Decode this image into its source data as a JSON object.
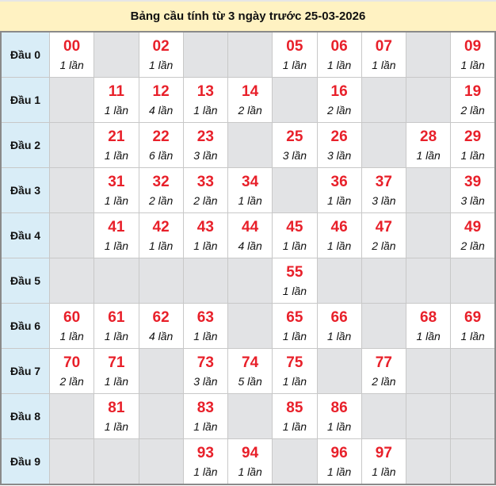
{
  "title": "Bảng cầu tính từ 3 ngày trước 25-03-2026",
  "colors": {
    "number": "#e8202a",
    "label_bg": "#d9edf7",
    "empty_bg": "#e2e3e5",
    "title_bg": "#fff2c2"
  },
  "rows": [
    {
      "label": "Đầu 0",
      "cells": [
        {
          "n": "00",
          "c": "1 lần"
        },
        null,
        {
          "n": "02",
          "c": "1 lần"
        },
        null,
        null,
        {
          "n": "05",
          "c": "1 lần"
        },
        {
          "n": "06",
          "c": "1 lần"
        },
        {
          "n": "07",
          "c": "1 lần"
        },
        null,
        {
          "n": "09",
          "c": "1 lần"
        }
      ]
    },
    {
      "label": "Đầu 1",
      "cells": [
        null,
        {
          "n": "11",
          "c": "1 lần"
        },
        {
          "n": "12",
          "c": "4 lần"
        },
        {
          "n": "13",
          "c": "1 lần"
        },
        {
          "n": "14",
          "c": "2 lần"
        },
        null,
        {
          "n": "16",
          "c": "2 lần"
        },
        null,
        null,
        {
          "n": "19",
          "c": "2 lần"
        }
      ]
    },
    {
      "label": "Đầu 2",
      "cells": [
        null,
        {
          "n": "21",
          "c": "1 lần"
        },
        {
          "n": "22",
          "c": "6 lần"
        },
        {
          "n": "23",
          "c": "3 lần"
        },
        null,
        {
          "n": "25",
          "c": "3 lần"
        },
        {
          "n": "26",
          "c": "3 lần"
        },
        null,
        {
          "n": "28",
          "c": "1 lần"
        },
        {
          "n": "29",
          "c": "1 lần"
        }
      ]
    },
    {
      "label": "Đầu 3",
      "cells": [
        null,
        {
          "n": "31",
          "c": "1 lần"
        },
        {
          "n": "32",
          "c": "2 lần"
        },
        {
          "n": "33",
          "c": "2 lần"
        },
        {
          "n": "34",
          "c": "1 lần"
        },
        null,
        {
          "n": "36",
          "c": "1 lần"
        },
        {
          "n": "37",
          "c": "3 lần"
        },
        null,
        {
          "n": "39",
          "c": "3 lần"
        }
      ]
    },
    {
      "label": "Đầu 4",
      "cells": [
        null,
        {
          "n": "41",
          "c": "1 lần"
        },
        {
          "n": "42",
          "c": "1 lần"
        },
        {
          "n": "43",
          "c": "1 lần"
        },
        {
          "n": "44",
          "c": "4 lần"
        },
        {
          "n": "45",
          "c": "1 lần"
        },
        {
          "n": "46",
          "c": "1 lần"
        },
        {
          "n": "47",
          "c": "2 lần"
        },
        null,
        {
          "n": "49",
          "c": "2 lần"
        }
      ]
    },
    {
      "label": "Đầu 5",
      "cells": [
        null,
        null,
        null,
        null,
        null,
        {
          "n": "55",
          "c": "1 lần"
        },
        null,
        null,
        null,
        null
      ]
    },
    {
      "label": "Đầu 6",
      "cells": [
        {
          "n": "60",
          "c": "1 lần"
        },
        {
          "n": "61",
          "c": "1 lần"
        },
        {
          "n": "62",
          "c": "4 lần"
        },
        {
          "n": "63",
          "c": "1 lần"
        },
        null,
        {
          "n": "65",
          "c": "1 lần"
        },
        {
          "n": "66",
          "c": "1 lần"
        },
        null,
        {
          "n": "68",
          "c": "1 lần"
        },
        {
          "n": "69",
          "c": "1 lần"
        }
      ]
    },
    {
      "label": "Đầu 7",
      "cells": [
        {
          "n": "70",
          "c": "2 lần"
        },
        {
          "n": "71",
          "c": "1 lần"
        },
        null,
        {
          "n": "73",
          "c": "3 lần"
        },
        {
          "n": "74",
          "c": "5 lần"
        },
        {
          "n": "75",
          "c": "1 lần"
        },
        null,
        {
          "n": "77",
          "c": "2 lần"
        },
        null,
        null
      ]
    },
    {
      "label": "Đầu 8",
      "cells": [
        null,
        {
          "n": "81",
          "c": "1 lần"
        },
        null,
        {
          "n": "83",
          "c": "1 lần"
        },
        null,
        {
          "n": "85",
          "c": "1 lần"
        },
        {
          "n": "86",
          "c": "1 lần"
        },
        null,
        null,
        null
      ]
    },
    {
      "label": "Đầu 9",
      "cells": [
        null,
        null,
        null,
        {
          "n": "93",
          "c": "1 lần"
        },
        {
          "n": "94",
          "c": "1 lần"
        },
        null,
        {
          "n": "96",
          "c": "1 lần"
        },
        {
          "n": "97",
          "c": "1 lần"
        },
        null,
        null
      ]
    }
  ]
}
